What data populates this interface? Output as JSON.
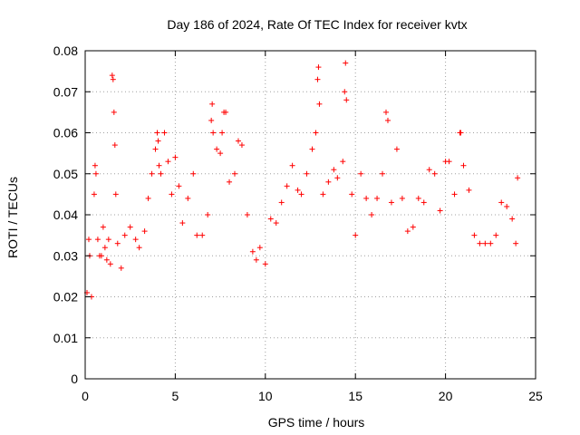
{
  "chart_data": {
    "type": "scatter",
    "title": "Day 186 of 2024, Rate Of TEC Index for receiver kvtx",
    "xlabel": "GPS time / hours",
    "ylabel": "ROTI / TECUs",
    "xlim": [
      0,
      25
    ],
    "ylim": [
      0,
      0.08
    ],
    "x_ticks": [
      "0",
      "5",
      "10",
      "15",
      "20",
      "25"
    ],
    "y_ticks": [
      "0",
      "0.01",
      "0.02",
      "0.03",
      "0.04",
      "0.05",
      "0.06",
      "0.07",
      "0.08"
    ],
    "grid": true,
    "marker": "+",
    "color": "#ff0000",
    "series": [
      {
        "x": [
          0.1,
          0.2,
          0.25,
          0.35,
          0.5,
          0.55,
          0.6,
          0.7,
          0.8,
          0.9,
          1.0,
          1.1,
          1.2,
          1.3,
          1.4,
          1.5,
          1.55,
          1.6,
          1.65,
          1.7,
          1.8,
          2.0,
          2.2,
          2.5,
          2.8,
          3.0,
          3.3,
          3.5,
          3.7,
          3.9,
          4.0,
          4.05,
          4.1,
          4.2,
          4.4,
          4.6,
          4.8,
          5.0,
          5.2,
          5.4,
          5.7,
          6.0,
          6.2,
          6.5,
          6.8,
          7.0,
          7.05,
          7.1,
          7.3,
          7.5,
          7.6,
          7.7,
          7.8,
          8.0,
          8.3,
          8.5,
          8.7,
          9.0,
          9.3,
          9.5,
          9.7,
          10.0,
          10.3,
          10.6,
          10.9,
          11.2,
          11.5,
          11.8,
          12.0,
          12.3,
          12.6,
          12.8,
          12.9,
          12.95,
          13.0,
          13.2,
          13.5,
          13.8,
          14.0,
          14.3,
          14.4,
          14.45,
          14.5,
          14.8,
          15.0,
          15.3,
          15.6,
          15.9,
          16.2,
          16.5,
          16.7,
          16.8,
          17.0,
          17.3,
          17.6,
          17.9,
          18.2,
          18.5,
          18.8,
          19.1,
          19.4,
          19.7,
          20.0,
          20.2,
          20.5,
          20.8,
          20.85,
          21.0,
          21.3,
          21.6,
          21.9,
          22.2,
          22.5,
          22.8,
          23.1,
          23.4,
          23.7,
          23.9,
          24.0
        ],
        "y": [
          0.021,
          0.034,
          0.03,
          0.02,
          0.045,
          0.052,
          0.05,
          0.034,
          0.03,
          0.03,
          0.037,
          0.032,
          0.029,
          0.034,
          0.028,
          0.074,
          0.073,
          0.065,
          0.057,
          0.045,
          0.033,
          0.027,
          0.035,
          0.037,
          0.034,
          0.032,
          0.036,
          0.044,
          0.05,
          0.056,
          0.06,
          0.058,
          0.052,
          0.05,
          0.06,
          0.053,
          0.045,
          0.054,
          0.047,
          0.038,
          0.044,
          0.05,
          0.035,
          0.035,
          0.04,
          0.063,
          0.067,
          0.06,
          0.056,
          0.055,
          0.06,
          0.065,
          0.065,
          0.048,
          0.05,
          0.058,
          0.057,
          0.04,
          0.031,
          0.029,
          0.032,
          0.028,
          0.039,
          0.038,
          0.043,
          0.047,
          0.052,
          0.046,
          0.045,
          0.05,
          0.056,
          0.06,
          0.073,
          0.076,
          0.067,
          0.045,
          0.048,
          0.051,
          0.049,
          0.053,
          0.07,
          0.077,
          0.068,
          0.045,
          0.035,
          0.05,
          0.044,
          0.04,
          0.044,
          0.05,
          0.065,
          0.063,
          0.043,
          0.056,
          0.044,
          0.036,
          0.037,
          0.044,
          0.043,
          0.051,
          0.05,
          0.041,
          0.053,
          0.053,
          0.045,
          0.06,
          0.06,
          0.052,
          0.046,
          0.035,
          0.033,
          0.033,
          0.033,
          0.035,
          0.043,
          0.042,
          0.039,
          0.033,
          0.049
        ]
      }
    ]
  }
}
